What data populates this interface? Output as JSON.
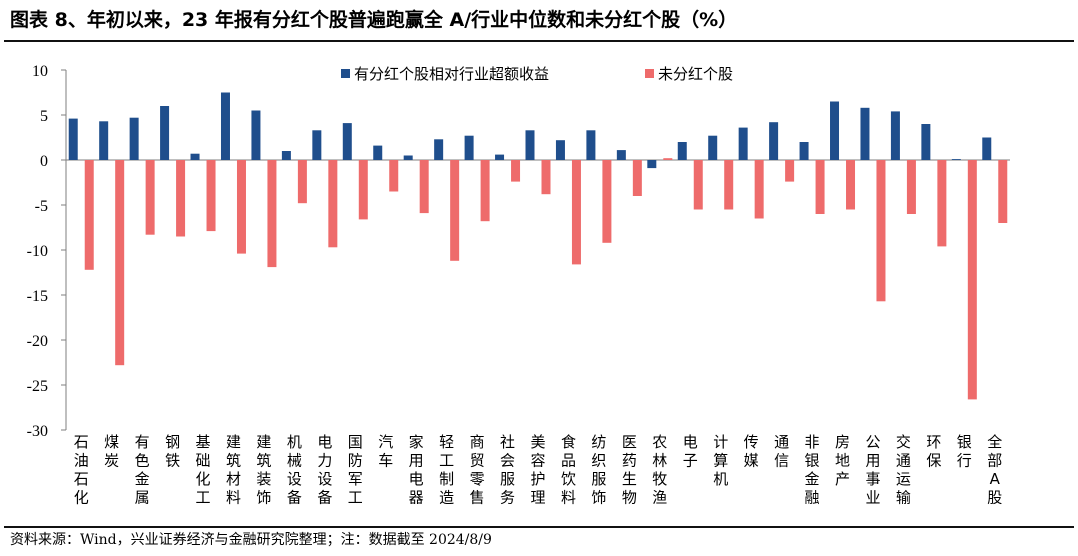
{
  "header": {
    "title": "图表 8、年初以来，23 年报有分红个股普遍跑赢全 A/行业中位数和未分红个股（%）"
  },
  "footer": {
    "source": "资料来源：Wind，兴业证券经济与金融研究院整理；注：数据截至 2024/8/9"
  },
  "colors": {
    "series1": "#1f4e8c",
    "series2": "#ee6b6b"
  },
  "chart_data": {
    "type": "bar",
    "title": "",
    "xlabel": "",
    "ylabel": "",
    "ylim": [
      -30,
      10
    ],
    "yticks": [
      10,
      5,
      0,
      -5,
      -10,
      -15,
      -20,
      -25,
      -30
    ],
    "legend_position": "top",
    "grid": false,
    "categories": [
      "石油石化",
      "煤炭",
      "有色金属",
      "钢铁",
      "基础化工",
      "建筑材料",
      "建筑装饰",
      "机械设备",
      "电力设备",
      "国防军工",
      "汽车",
      "家用电器",
      "轻工制造",
      "商贸零售",
      "社会服务",
      "美容护理",
      "食品饮料",
      "纺织服饰",
      "医药生物",
      "农林牧渔",
      "电子",
      "计算机",
      "传媒",
      "通信",
      "非银金融",
      "房地产",
      "公用事业",
      "交通运输",
      "环保",
      "银行",
      "全部A股"
    ],
    "series": [
      {
        "name": "有分红个股相对行业超额收益",
        "values": [
          4.6,
          4.3,
          4.7,
          6.0,
          0.7,
          7.5,
          5.5,
          1.0,
          3.3,
          4.1,
          1.6,
          0.5,
          2.3,
          2.7,
          0.6,
          3.3,
          2.2,
          3.3,
          1.1,
          -0.9,
          2.0,
          2.7,
          3.6,
          4.2,
          2.0,
          6.5,
          5.8,
          5.4,
          4.0,
          0.1,
          2.5
        ]
      },
      {
        "name": "未分红个股",
        "values": [
          -12.2,
          -22.8,
          -8.3,
          -8.5,
          -7.9,
          -10.4,
          -11.9,
          -4.8,
          -9.7,
          -6.6,
          -3.5,
          -5.9,
          -11.2,
          -6.8,
          -2.4,
          -3.8,
          -11.6,
          -9.2,
          -4.0,
          0.2,
          -5.5,
          -5.5,
          -6.5,
          -2.4,
          -6.0,
          -5.5,
          -15.7,
          -6.0,
          -9.6,
          -26.6,
          -7.0
        ]
      }
    ]
  }
}
